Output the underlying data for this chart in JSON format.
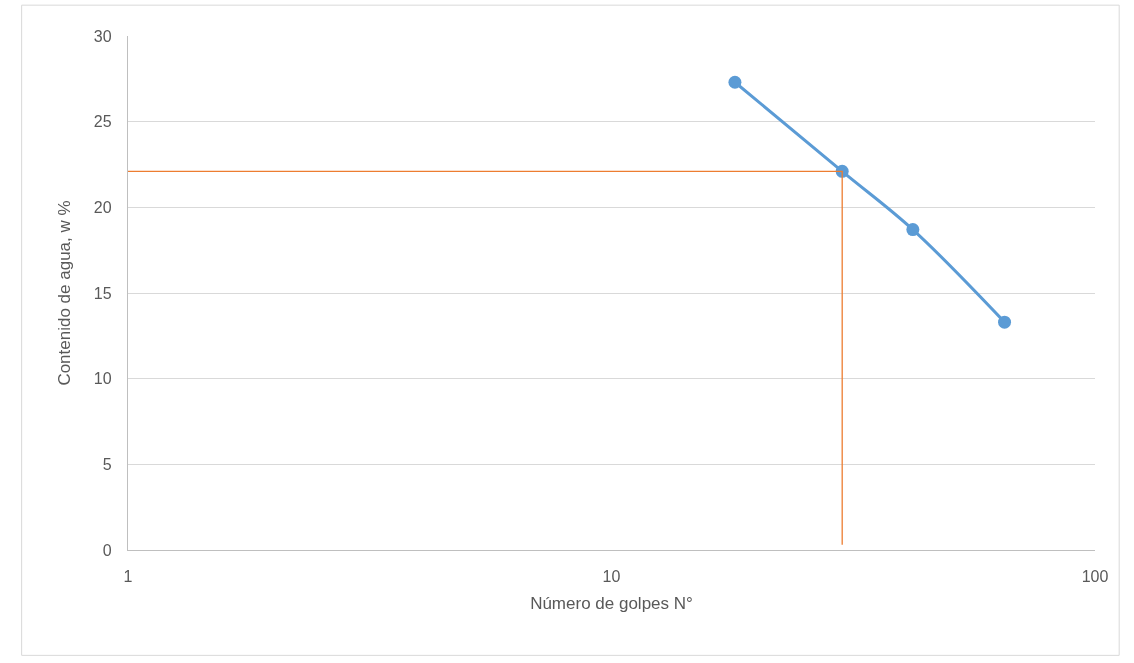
{
  "chart_data": {
    "type": "line",
    "xlabel": "Número de golpes N°",
    "ylabel": "Contenido de agua, w %",
    "log": "x",
    "xlim": [
      1,
      100
    ],
    "xticks": [
      1,
      10,
      100
    ],
    "ylim": [
      0,
      30
    ],
    "yticks": [
      0,
      5,
      10,
      15,
      20,
      25,
      30
    ],
    "grid": "y",
    "series": [
      {
        "color": "#5b9bd5",
        "marker": "circle",
        "x": [
          18,
          30,
          42,
          65
        ],
        "values": [
          27.3,
          22.1,
          18.7,
          13.3
        ]
      },
      {
        "color": "#ed7d31",
        "marker": "none",
        "x": [
          1,
          30,
          30
        ],
        "values": [
          22.1,
          22.1,
          0.3
        ]
      }
    ]
  }
}
